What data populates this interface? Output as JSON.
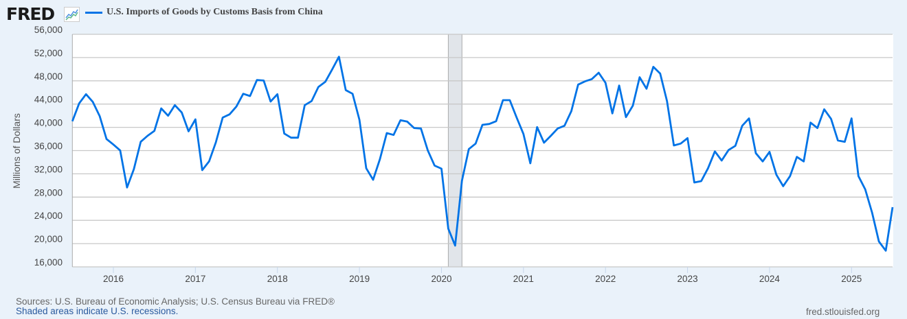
{
  "header": {
    "logo": "FRED",
    "legend_label": "U.S. Imports of Goods by Customs Basis from China"
  },
  "footer": {
    "sources": "Sources: U.S. Bureau of Economic Analysis; U.S. Census Bureau via FRED®",
    "recession_note": "Shaded areas indicate U.S. recessions.",
    "site": "fred.stlouisfed.org"
  },
  "chart_data": {
    "type": "line",
    "title": "",
    "xlabel": "",
    "ylabel": "Millions of Dollars",
    "ylim": [
      16000,
      56000
    ],
    "yticks": [
      "16,000",
      "20,000",
      "24,000",
      "28,000",
      "32,000",
      "36,000",
      "40,000",
      "44,000",
      "48,000",
      "52,000",
      "56,000"
    ],
    "xticks": [
      "2016",
      "2017",
      "2018",
      "2019",
      "2020",
      "2021",
      "2022",
      "2023",
      "2024",
      "2025"
    ],
    "xlim": [
      "2015-07",
      "2025-07"
    ],
    "grid": true,
    "line_color": "#0073e6",
    "recession_color": "#e1e5ea",
    "recessions": [
      [
        "2020-02",
        "2020-04"
      ]
    ],
    "series": [
      {
        "name": "U.S. Imports of Goods by Customs Basis from China",
        "start": "2015-07",
        "frequency": "monthly",
        "values": [
          41050,
          44120,
          45700,
          44360,
          41920,
          37990,
          37040,
          36020,
          29650,
          32800,
          37510,
          38540,
          39400,
          43260,
          42000,
          43810,
          42550,
          39320,
          41370,
          32640,
          34130,
          37440,
          41680,
          42230,
          43570,
          45770,
          45380,
          48130,
          48050,
          44440,
          45700,
          38930,
          38220,
          38220,
          43810,
          44520,
          46950,
          47820,
          49940,
          52140,
          46400,
          45770,
          41290,
          32950,
          30990,
          34530,
          39010,
          38690,
          41210,
          40980,
          39880,
          39800,
          36020,
          33420,
          32880,
          22570,
          19660,
          30830,
          36260,
          37200,
          40430,
          40580,
          41050,
          44670,
          44670,
          41680,
          38850,
          33820,
          40030,
          37360,
          38540,
          39800,
          40270,
          42790,
          47350,
          47900,
          48290,
          49390,
          47660,
          42390,
          47190,
          41760,
          43730,
          48610,
          46640,
          50410,
          49240,
          44520,
          36890,
          37200,
          38140,
          30510,
          30750,
          32950,
          35860,
          34290,
          36100,
          36810,
          40270,
          41530,
          35550,
          34130,
          35780,
          31850,
          29880,
          31610,
          34920,
          34130,
          40820,
          39880,
          43100,
          41450,
          37750,
          37510,
          41530,
          31610,
          29330,
          25320,
          20370,
          18790,
          26270
        ]
      }
    ]
  }
}
